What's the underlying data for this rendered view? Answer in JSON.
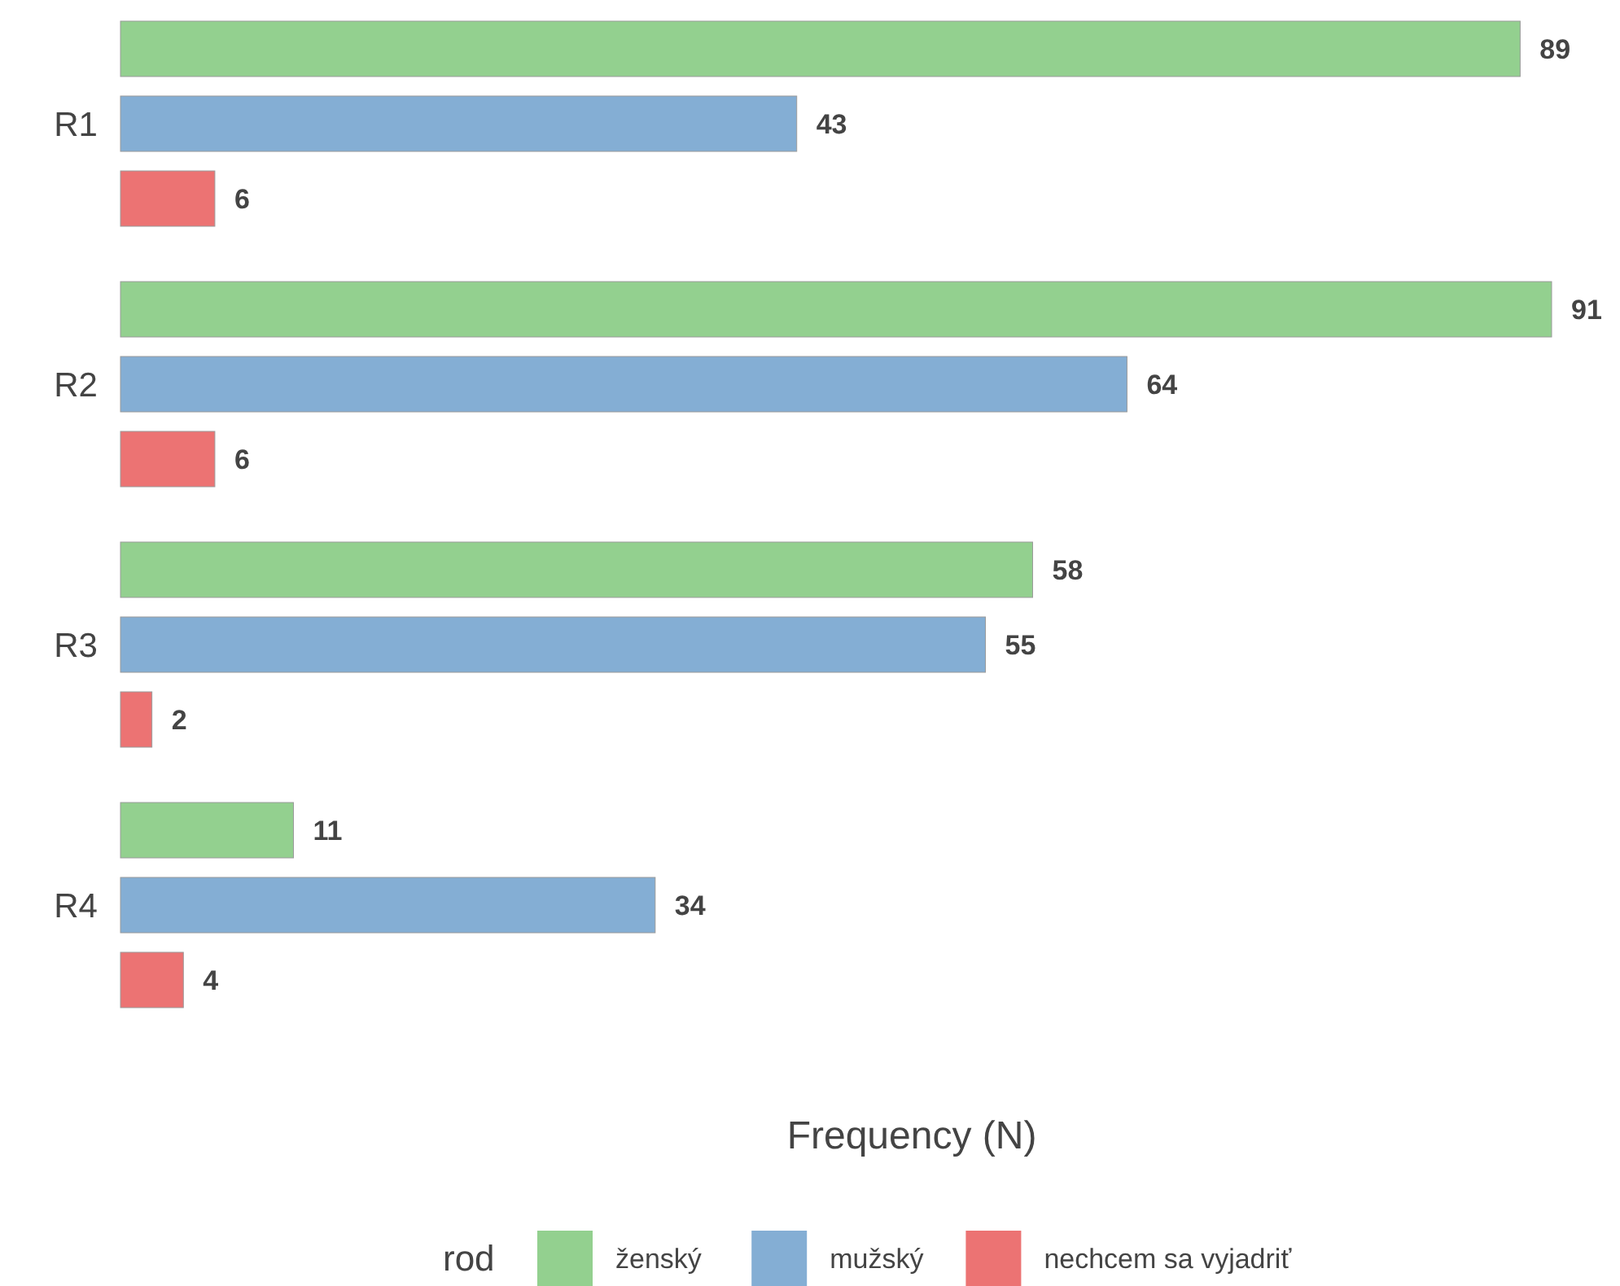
{
  "chart_data": {
    "type": "bar",
    "orientation": "horizontal",
    "categories": [
      "R1",
      "R2",
      "R3",
      "R4"
    ],
    "series": [
      {
        "name": "ženský",
        "color": "#93d08f",
        "values": [
          89,
          91,
          58,
          11
        ]
      },
      {
        "name": "mužský",
        "color": "#84aed4",
        "values": [
          43,
          64,
          55,
          34
        ]
      },
      {
        "name": "nechcem sa vyjadriť",
        "color": "#ec7373",
        "values": [
          6,
          6,
          2,
          4
        ]
      }
    ],
    "xlabel": "Frequency (N)",
    "legend_title": "rod",
    "legend": "bottom",
    "data_labels": true,
    "tick_labels": "y"
  }
}
